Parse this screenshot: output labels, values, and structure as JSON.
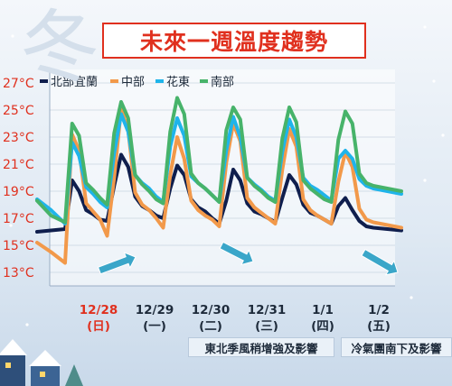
{
  "title": "未來一週溫度趨勢",
  "deco_char": "冬",
  "colors": {
    "title_red": "#e0301e",
    "north": "#0f1e4d",
    "central": "#f2994a",
    "east": "#1fb4ea",
    "south": "#47b36a",
    "arrow": "#3aa6c9",
    "date_red": "#e0301e",
    "date_black": "#1d2a3a"
  },
  "chart_data": {
    "type": "line",
    "title": "未來一週溫度趨勢",
    "unit": "°C",
    "ylim": [
      12,
      28
    ],
    "yticks": [
      13,
      15,
      17,
      19,
      21,
      23,
      25,
      27
    ],
    "ytick_labels": [
      "13°C",
      "15°C",
      "17°C",
      "19°C",
      "21°C",
      "23°C",
      "25°C",
      "27°C"
    ],
    "x_days": [
      {
        "date": "12/28",
        "weekday": "(日)",
        "highlight": true
      },
      {
        "date": "12/29",
        "weekday": "(一)",
        "highlight": false
      },
      {
        "date": "12/30",
        "weekday": "(二)",
        "highlight": false
      },
      {
        "date": "12/31",
        "weekday": "(三)",
        "highlight": false
      },
      {
        "date": "1/1",
        "weekday": "(四)",
        "highlight": false
      },
      {
        "date": "1/2",
        "weekday": "(五)",
        "highlight": false
      }
    ],
    "x_hours": [
      -24,
      -18,
      -12,
      -9,
      -6,
      -3,
      0,
      3,
      6,
      9,
      12,
      15,
      18,
      21,
      24,
      27,
      30,
      33,
      36,
      39,
      42,
      45,
      48,
      51,
      54,
      57,
      60,
      63,
      66,
      69,
      72,
      75,
      78,
      81,
      84,
      87,
      90,
      93,
      96,
      99,
      102,
      105,
      108,
      111,
      114,
      117,
      120,
      126,
      132
    ],
    "legend": {
      "position": "top-left"
    },
    "series": [
      {
        "name": "北部宜蘭",
        "color": "#0f1e4d",
        "values": [
          16.0,
          16.1,
          16.2,
          19.8,
          19.0,
          17.6,
          17.3,
          16.9,
          16.8,
          19.4,
          21.7,
          20.8,
          18.6,
          17.9,
          17.6,
          17.2,
          17.0,
          19.2,
          20.9,
          20.2,
          18.4,
          17.8,
          17.5,
          17.0,
          16.6,
          18.3,
          20.6,
          19.8,
          18.1,
          17.5,
          17.3,
          17.0,
          16.7,
          18.5,
          20.2,
          19.5,
          18.0,
          17.4,
          17.2,
          16.9,
          16.6,
          17.9,
          18.5,
          17.6,
          16.8,
          16.4,
          16.3,
          16.2,
          16.1
        ]
      },
      {
        "name": "中部",
        "color": "#f2994a",
        "values": [
          15.2,
          14.5,
          13.7,
          23.2,
          22.0,
          18.1,
          17.5,
          16.9,
          15.7,
          20.0,
          25.1,
          23.5,
          18.9,
          18.0,
          17.6,
          17.0,
          16.3,
          20.2,
          23.0,
          21.4,
          18.3,
          17.6,
          17.2,
          16.9,
          16.4,
          21.1,
          24.0,
          22.7,
          18.5,
          17.8,
          17.4,
          17.0,
          16.6,
          20.6,
          23.6,
          22.3,
          18.4,
          17.6,
          17.2,
          16.9,
          16.6,
          19.7,
          21.9,
          20.8,
          17.7,
          16.9,
          16.7,
          16.5,
          16.3
        ]
      },
      {
        "name": "花東",
        "color": "#1fb4ea",
        "values": [
          18.4,
          17.6,
          16.6,
          22.6,
          21.6,
          19.3,
          18.8,
          18.2,
          17.8,
          21.8,
          24.7,
          23.4,
          20.2,
          19.6,
          19.2,
          18.6,
          18.2,
          22.3,
          24.4,
          23.1,
          20.1,
          19.6,
          19.2,
          18.7,
          18.2,
          22.0,
          24.5,
          23.0,
          20.0,
          19.5,
          19.1,
          18.6,
          18.3,
          21.9,
          24.3,
          23.0,
          20.0,
          19.4,
          19.1,
          18.7,
          18.3,
          21.4,
          22.0,
          21.4,
          19.9,
          19.4,
          19.2,
          19.0,
          18.8
        ]
      },
      {
        "name": "南部",
        "color": "#47b36a",
        "values": [
          18.3,
          17.2,
          16.7,
          24.0,
          23.1,
          19.6,
          19.1,
          18.5,
          18.0,
          23.3,
          25.6,
          24.4,
          20.2,
          19.5,
          19.0,
          18.4,
          18.1,
          23.4,
          25.9,
          24.7,
          20.3,
          19.6,
          19.2,
          18.7,
          18.2,
          23.5,
          25.2,
          24.3,
          20.0,
          19.4,
          19.0,
          18.5,
          18.2,
          22.9,
          25.2,
          24.1,
          19.8,
          19.2,
          18.8,
          18.4,
          18.2,
          22.8,
          24.9,
          24.0,
          20.3,
          19.6,
          19.4,
          19.2,
          19.0
        ]
      }
    ]
  },
  "notes": [
    "東北季風稍增強及影響",
    "冷氣團南下及影響"
  ]
}
